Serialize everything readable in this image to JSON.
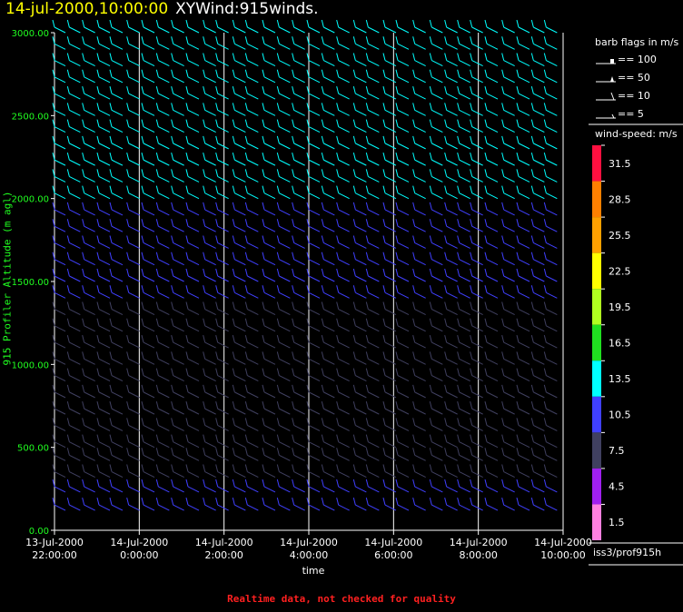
{
  "header": {
    "date_label": "14-jul-2000,10:00:00",
    "plot_name": "XYWind:915winds."
  },
  "footer": {
    "notice": "Realtime data, not checked for quality"
  },
  "station": "iss3/prof915h",
  "colors": {
    "ylabel": "#20ff20",
    "notice": "#ff2020",
    "title_date": "#ffff00"
  },
  "legend": {
    "barb_title": "barb flags in m/s",
    "barb_flags": [
      {
        "label": "== 100"
      },
      {
        "label": "== 50"
      },
      {
        "label": "== 10"
      },
      {
        "label": "== 5"
      }
    ],
    "speed_title": "wind-speed: m/s",
    "speed_scale": [
      {
        "value": "31.5",
        "color": "#ff1040"
      },
      {
        "value": "28.5",
        "color": "#ff8000"
      },
      {
        "value": "25.5",
        "color": "#ffa000"
      },
      {
        "value": "22.5",
        "color": "#ffff00"
      },
      {
        "value": "19.5",
        "color": "#b0ff20"
      },
      {
        "value": "16.5",
        "color": "#20e020"
      },
      {
        "value": "13.5",
        "color": "#00ffff"
      },
      {
        "value": "10.5",
        "color": "#4040ff"
      },
      {
        "value": "7.5",
        "color": "#404060"
      },
      {
        "value": "4.5",
        "color": "#a020f0"
      },
      {
        "value": "1.5",
        "color": "#ff80e0"
      }
    ]
  },
  "chart_data": {
    "type": "scatter",
    "title": "XYWind:915winds.",
    "xlabel": "time",
    "ylabel": "915 Profiler Altitude (m agl)",
    "ylim": [
      0,
      3000
    ],
    "y_ticks": [
      "0.00",
      "500.00",
      "1000.00",
      "1500.00",
      "2000.00",
      "2500.00",
      "3000.00"
    ],
    "x_ticks": [
      {
        "date": "13-Jul-2000",
        "time": "22:00:00"
      },
      {
        "date": "14-Jul-2000",
        "time": "0:00:00"
      },
      {
        "date": "14-Jul-2000",
        "time": "2:00:00"
      },
      {
        "date": "14-Jul-2000",
        "time": "4:00:00"
      },
      {
        "date": "14-Jul-2000",
        "time": "6:00:00"
      },
      {
        "date": "14-Jul-2000",
        "time": "8:00:00"
      },
      {
        "date": "14-Jul-2000",
        "time": "10:00:00"
      }
    ],
    "grid": "vertical",
    "legend_position": "right",
    "profile_hours": [
      0.0,
      0.35,
      0.7,
      1.05,
      1.35,
      1.75,
      2.1,
      2.45,
      2.8,
      3.15,
      3.55,
      3.85,
      4.25,
      4.55,
      4.95,
      5.3,
      5.65,
      6.0,
      6.35,
      6.7,
      7.1,
      7.4,
      7.8,
      8.1,
      8.5,
      8.9,
      9.25,
      9.55,
      9.85,
      10.2,
      10.6,
      10.95,
      11.3,
      11.6
    ],
    "profiles": [
      {
        "profile": 0,
        "levels": [
          120,
          230,
          320,
          420,
          500,
          600,
          700,
          800,
          900,
          1000,
          1100,
          1200,
          1300,
          1400,
          1500,
          1600,
          1700,
          1800,
          1900,
          2000,
          2100,
          2200,
          2300,
          2400,
          2500,
          2600,
          2700,
          2800,
          2900,
          3000
        ],
        "speed": [
          9,
          9,
          8,
          8,
          8,
          7,
          7,
          7,
          7,
          7,
          7,
          8,
          8,
          9,
          9,
          10,
          10,
          11,
          11,
          12,
          13,
          14,
          14,
          14,
          13,
          13,
          13,
          13,
          13,
          13
        ]
      }
    ]
  }
}
